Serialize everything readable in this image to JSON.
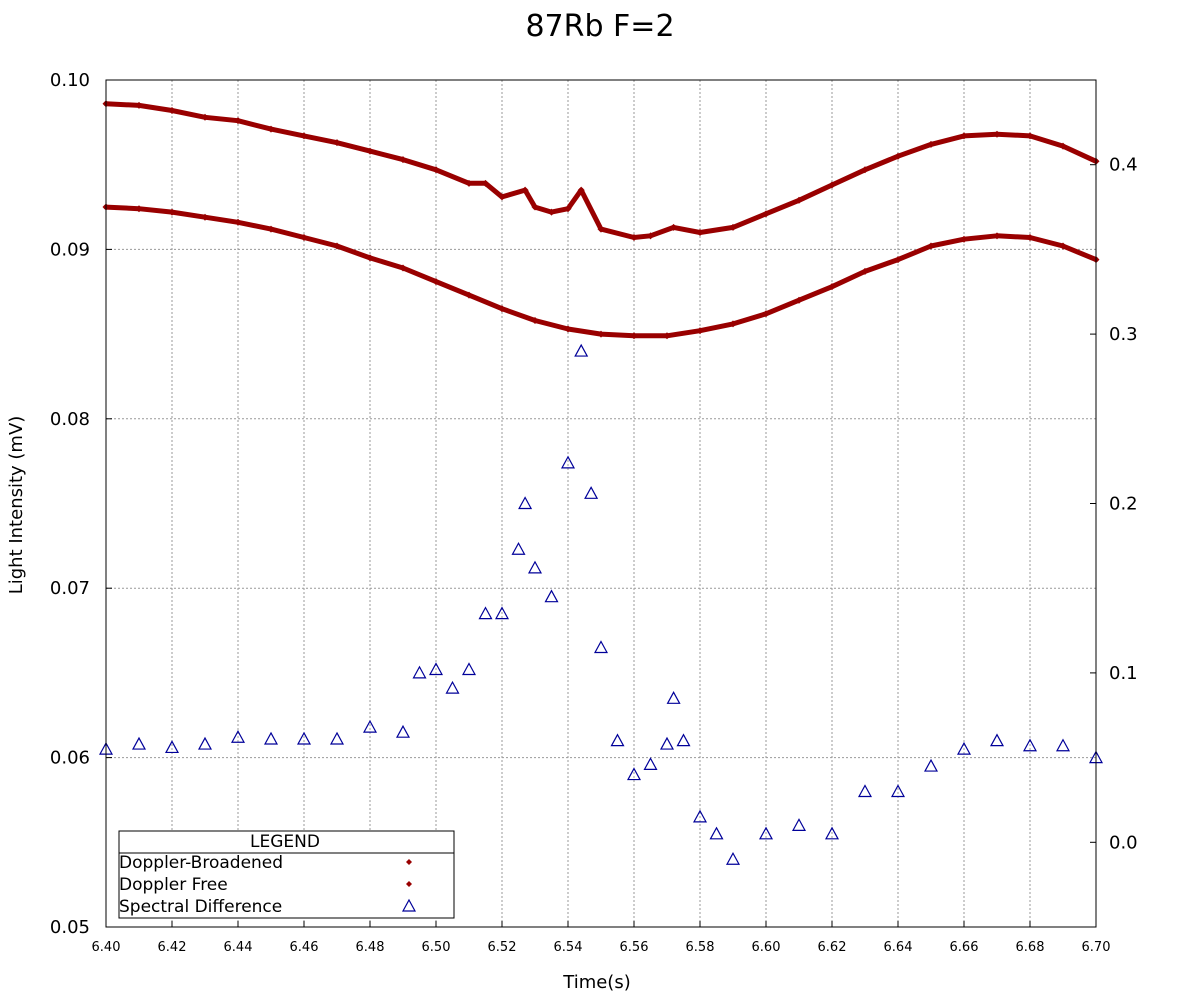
{
  "chart_data": {
    "type": "scatter",
    "title": "87Rb F=2",
    "xlabel": "Time(s)",
    "ylabel": "Light Intensity (mV)",
    "xlim": [
      6.4,
      6.7
    ],
    "ylim": [
      0.05,
      0.1
    ],
    "y2lim": [
      -0.05,
      0.45
    ],
    "grid": true,
    "x_ticks": [
      "6.40",
      "6.42",
      "6.44",
      "6.46",
      "6.48",
      "6.50",
      "6.52",
      "6.54",
      "6.56",
      "6.58",
      "6.60",
      "6.62",
      "6.64",
      "6.66",
      "6.68",
      "6.70"
    ],
    "y_ticks": [
      "0.05",
      "0.06",
      "0.07",
      "0.08",
      "0.09",
      "0.10"
    ],
    "y2_ticks": [
      "0.0",
      "0.1",
      "0.2",
      "0.3",
      "0.4"
    ],
    "legend": {
      "title": "LEGEND",
      "placement": "bottom-left",
      "entries": [
        "Doppler-Broadened",
        "Doppler Free",
        "Spectral Difference"
      ]
    },
    "series": [
      {
        "name": "Doppler-Broadened",
        "axis": "left",
        "marker": "diamond",
        "color": "#990000",
        "x": [
          6.4,
          6.41,
          6.42,
          6.43,
          6.44,
          6.45,
          6.46,
          6.47,
          6.48,
          6.49,
          6.5,
          6.51,
          6.52,
          6.53,
          6.54,
          6.55,
          6.56,
          6.57,
          6.58,
          6.59,
          6.6,
          6.61,
          6.62,
          6.63,
          6.64,
          6.65,
          6.66,
          6.67,
          6.68,
          6.69,
          6.7
        ],
        "y": [
          0.0925,
          0.0924,
          0.0922,
          0.0919,
          0.0916,
          0.0912,
          0.0907,
          0.0902,
          0.0895,
          0.0889,
          0.0881,
          0.0873,
          0.0865,
          0.0858,
          0.0853,
          0.085,
          0.0849,
          0.0849,
          0.0852,
          0.0856,
          0.0862,
          0.087,
          0.0878,
          0.0887,
          0.0894,
          0.0902,
          0.0906,
          0.0908,
          0.0907,
          0.0902,
          0.0894
        ]
      },
      {
        "name": "Doppler Free",
        "axis": "left",
        "marker": "diamond",
        "color": "#990000",
        "x": [
          6.4,
          6.41,
          6.42,
          6.43,
          6.44,
          6.45,
          6.46,
          6.47,
          6.48,
          6.49,
          6.5,
          6.51,
          6.515,
          6.52,
          6.527,
          6.53,
          6.535,
          6.54,
          6.544,
          6.55,
          6.56,
          6.565,
          6.572,
          6.58,
          6.59,
          6.6,
          6.61,
          6.62,
          6.63,
          6.64,
          6.65,
          6.66,
          6.67,
          6.68,
          6.69,
          6.7
        ],
        "y": [
          0.0986,
          0.0985,
          0.0982,
          0.0978,
          0.0976,
          0.0971,
          0.0967,
          0.0963,
          0.0958,
          0.0953,
          0.0947,
          0.0939,
          0.0939,
          0.0931,
          0.0935,
          0.0925,
          0.0922,
          0.0924,
          0.0935,
          0.0912,
          0.0907,
          0.0908,
          0.0913,
          0.091,
          0.0913,
          0.0921,
          0.0929,
          0.0938,
          0.0947,
          0.0955,
          0.0962,
          0.0967,
          0.0968,
          0.0967,
          0.0961,
          0.0952
        ]
      },
      {
        "name": "Spectral Difference",
        "axis": "right",
        "marker": "triangle-open",
        "color": "#000099",
        "x": [
          6.4,
          6.41,
          6.42,
          6.43,
          6.44,
          6.45,
          6.46,
          6.47,
          6.48,
          6.49,
          6.495,
          6.5,
          6.505,
          6.51,
          6.515,
          6.52,
          6.525,
          6.527,
          6.53,
          6.535,
          6.54,
          6.544,
          6.547,
          6.55,
          6.555,
          6.56,
          6.565,
          6.57,
          6.572,
          6.575,
          6.58,
          6.585,
          6.59,
          6.6,
          6.61,
          6.62,
          6.63,
          6.64,
          6.65,
          6.66,
          6.67,
          6.68,
          6.69,
          6.7
        ],
        "y": [
          0.055,
          0.058,
          0.056,
          0.058,
          0.062,
          0.061,
          0.061,
          0.061,
          0.068,
          0.065,
          0.1,
          0.102,
          0.091,
          0.102,
          0.135,
          0.135,
          0.173,
          0.2,
          0.162,
          0.145,
          0.224,
          0.29,
          0.206,
          0.115,
          0.06,
          0.04,
          0.046,
          0.058,
          0.085,
          0.06,
          0.015,
          0.005,
          -0.01,
          0.005,
          0.01,
          0.005,
          0.03,
          0.03,
          0.045,
          0.055,
          0.06,
          0.057,
          0.057,
          0.05
        ]
      }
    ]
  }
}
